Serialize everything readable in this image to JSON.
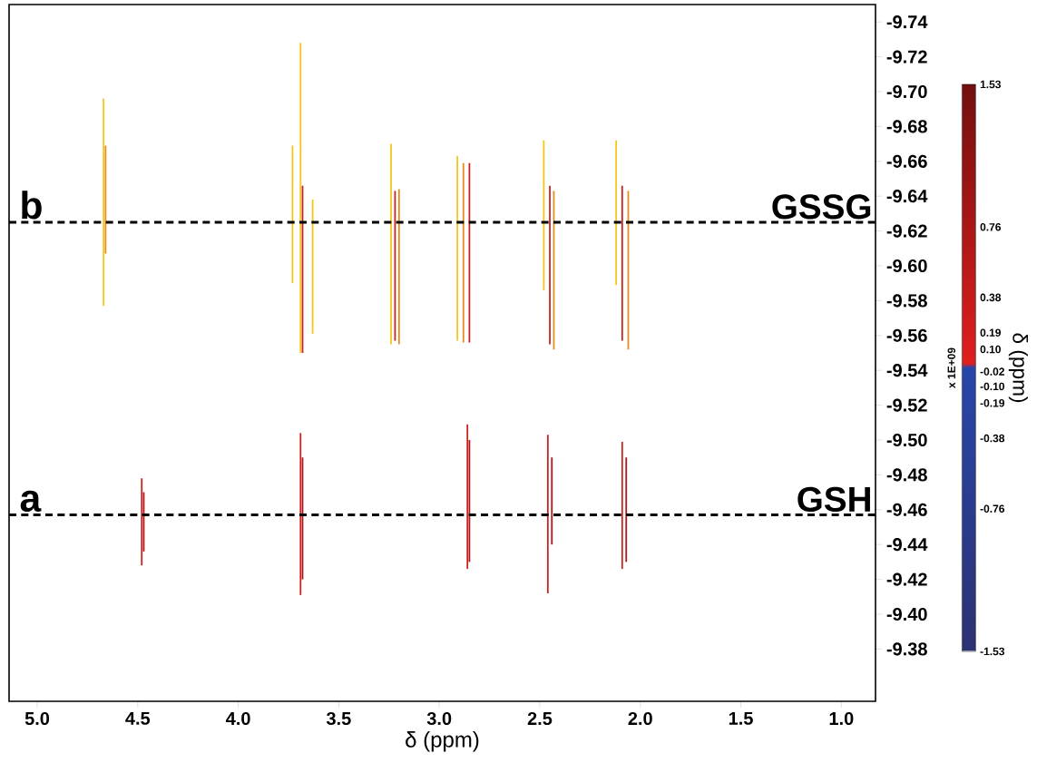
{
  "chart_data": {
    "type": "bar",
    "xlabel": "δ (ppm)",
    "clabel": "δ (ppm)",
    "annotations": [
      "b",
      "a",
      "x 1E+09"
    ],
    "xlim": [
      5.14,
      0.83
    ],
    "ylim": [
      -9.35,
      -9.75
    ],
    "xticks": [
      {
        "value": 5,
        "label": "5.0"
      },
      {
        "value": 4.5,
        "label": "4.5"
      },
      {
        "value": 4,
        "label": "4.0"
      },
      {
        "value": 3.5,
        "label": "3.5"
      },
      {
        "value": 3,
        "label": "3.0"
      },
      {
        "value": 2.5,
        "label": "2.5"
      },
      {
        "value": 2,
        "label": "2.0"
      },
      {
        "value": 1.5,
        "label": "1.5"
      },
      {
        "value": 1,
        "label": "1.0"
      }
    ],
    "yticks": [
      -9.74,
      -9.72,
      {
        "value": -9.7,
        "label": "-9.70"
      },
      -9.68,
      -9.66,
      -9.64,
      -9.62,
      {
        "value": -9.6,
        "label": "-9.60"
      },
      -9.58,
      -9.56,
      -9.54,
      -9.52,
      {
        "value": -9.5,
        "label": "-9.50"
      },
      -9.48,
      -9.46,
      -9.44,
      -9.42,
      {
        "value": -9.4,
        "label": "-9.40"
      },
      -9.38
    ],
    "clim": [
      -1.53,
      1.53
    ],
    "cticks": [
      1.53,
      0.76,
      0.38,
      0.19,
      {
        "value": 0.1,
        "label": "0.10"
      },
      -0.02,
      {
        "value": -0.1,
        "label": "-0.10"
      },
      -0.19,
      -0.38,
      -0.76,
      -1.53
    ],
    "ref_lines": [
      {
        "axis": "y",
        "value": -9.625,
        "label": "GSSG",
        "line_style": "dashed",
        "color": "#000000"
      },
      {
        "axis": "y",
        "value": -9.457,
        "label": "GSH",
        "line_style": "dashed",
        "color": "#000000"
      }
    ],
    "series": [
      {
        "x": [
          4.67,
          4.66,
          3.73,
          3.69,
          3.68,
          3.63,
          3.24,
          3.22,
          3.2,
          2.91,
          2.88,
          2.85,
          2.48,
          2.45,
          2.43,
          2.12,
          2.09,
          2.06
        ],
        "base": [
          -9.577,
          -9.607,
          -9.59,
          -9.55,
          -9.55,
          -9.561,
          -9.555,
          -9.557,
          -9.555,
          -9.557,
          -9.556,
          -9.556,
          -9.586,
          -9.555,
          -9.552,
          -9.589,
          -9.557,
          -9.552
        ],
        "values": [
          -0.119,
          -0.062,
          -0.079,
          -0.178,
          -0.096,
          -0.077,
          -0.115,
          -0.086,
          -0.089,
          -0.106,
          -0.103,
          -0.103,
          -0.086,
          -0.091,
          -0.091,
          -0.083,
          -0.089,
          -0.091
        ],
        "colors": [
          "#f5c518",
          "#e88a1a",
          "#f5c518",
          "#f5c518",
          "#c8201a",
          "#f5c518",
          "#f5c518",
          "#c8201a",
          "#e88a1a",
          "#f5c518",
          "#e88a1a",
          "#c8201a",
          "#f5c518",
          "#c8201a",
          "#e88a1a",
          "#f5c518",
          "#c8201a",
          "#e88a1a"
        ]
      },
      {
        "x": [
          4.48,
          4.47,
          3.69,
          3.68,
          2.86,
          2.85,
          2.46,
          2.44,
          2.09,
          2.07
        ],
        "base": [
          -9.428,
          -9.436,
          -9.411,
          -9.42,
          -9.426,
          -9.43,
          -9.412,
          -9.44,
          -9.426,
          -9.43
        ],
        "values": [
          -0.05,
          -0.034,
          -0.093,
          -0.07,
          -0.083,
          -0.07,
          -0.091,
          -0.05,
          -0.073,
          -0.06
        ],
        "colors": [
          "#c8201a",
          "#b0141a",
          "#c8201a",
          "#b0141a",
          "#c8201a",
          "#b0141a",
          "#c8201a",
          "#b0141a",
          "#c8201a",
          "#b0141a"
        ]
      }
    ]
  }
}
